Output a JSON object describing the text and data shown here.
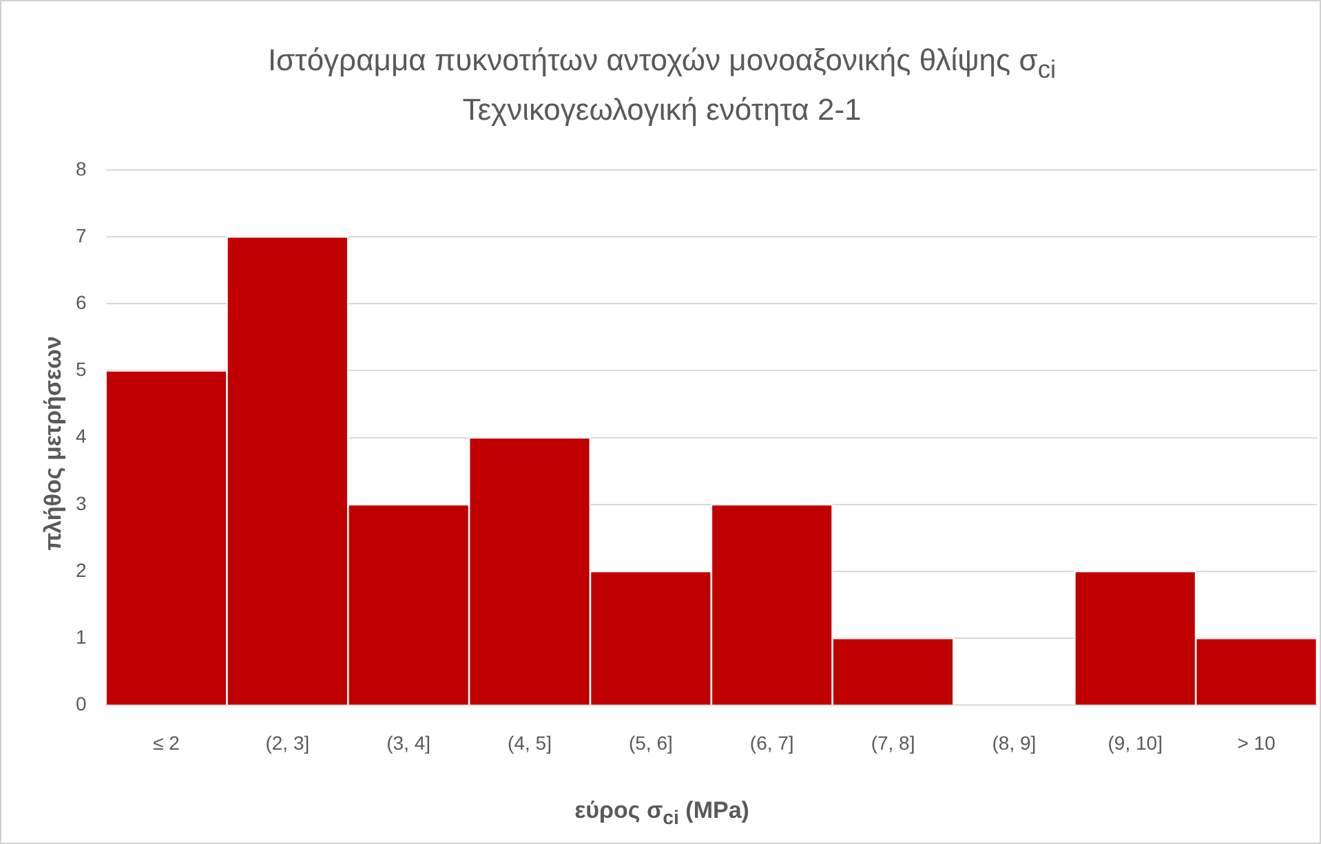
{
  "chart_data": {
    "type": "bar",
    "title": "Ιστόγραμμα πυκνοτήτων αντοχών μονοαξονικής θλίψης σ$_{ci}$",
    "subtitle": "Τεχνικογεωλογική ενότητα 2-1",
    "xlabel": "εύρος σ$_{ci}$ (MPa)",
    "ylabel": "πλήθος μετρήσεων",
    "categories": [
      "≤ 2",
      "(2, 3]",
      "(3, 4]",
      "(4, 5]",
      "(5, 6]",
      "(6, 7]",
      "(7, 8]",
      "(8, 9]",
      "(9, 10]",
      "> 10"
    ],
    "values": [
      5,
      7,
      3,
      4,
      2,
      3,
      1,
      0,
      2,
      1
    ],
    "color": "#c00000",
    "ylim": [
      0,
      8
    ],
    "yticks": [
      0,
      1,
      2,
      3,
      4,
      5,
      6,
      7,
      8
    ],
    "grid": "y",
    "legend": false
  }
}
